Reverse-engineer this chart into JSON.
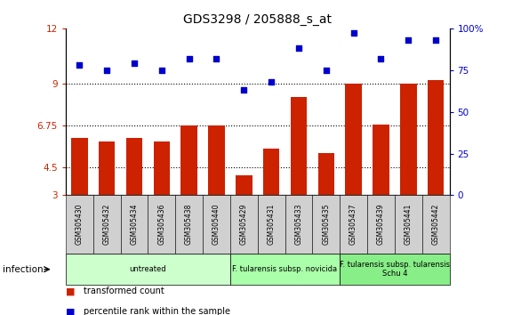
{
  "title": "GDS3298 / 205888_s_at",
  "samples": [
    "GSM305430",
    "GSM305432",
    "GSM305434",
    "GSM305436",
    "GSM305438",
    "GSM305440",
    "GSM305429",
    "GSM305431",
    "GSM305433",
    "GSM305435",
    "GSM305437",
    "GSM305439",
    "GSM305441",
    "GSM305442"
  ],
  "bar_values": [
    6.1,
    5.9,
    6.1,
    5.9,
    6.75,
    6.75,
    4.1,
    5.5,
    8.3,
    5.3,
    9.0,
    6.8,
    9.0,
    9.2
  ],
  "dot_values": [
    78,
    75,
    79,
    75,
    82,
    82,
    63,
    68,
    88,
    75,
    97,
    82,
    93,
    93
  ],
  "bar_color": "#cc2200",
  "dot_color": "#0000cc",
  "ylim_left": [
    3,
    12
  ],
  "ylim_right": [
    0,
    100
  ],
  "yticks_left": [
    3,
    4.5,
    6.75,
    9,
    12
  ],
  "yticks_right": [
    0,
    25,
    50,
    75,
    100
  ],
  "ytick_labels_left": [
    "3",
    "4.5",
    "6.75",
    "9",
    "12"
  ],
  "ytick_labels_right": [
    "0",
    "25",
    "50",
    "75",
    "100%"
  ],
  "hlines": [
    9.0,
    6.75,
    4.5
  ],
  "groups": [
    {
      "label": "untreated",
      "start": 0,
      "end": 6,
      "color": "#ccffcc"
    },
    {
      "label": "F. tularensis subsp. novicida",
      "start": 6,
      "end": 10,
      "color": "#aaffaa"
    },
    {
      "label": "F. tularensis subsp. tularensis\nSchu 4",
      "start": 10,
      "end": 14,
      "color": "#88ee88"
    }
  ],
  "infection_label": "infection",
  "legend_bar": "transformed count",
  "legend_dot": "percentile rank within the sample",
  "xtick_bg": "#d0d0d0"
}
